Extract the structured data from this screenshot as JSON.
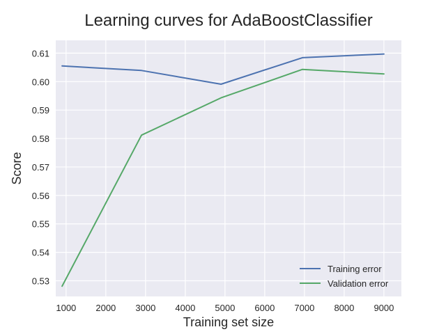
{
  "chart_data": {
    "type": "line",
    "title": "Learning curves for AdaBoostClassifier",
    "xlabel": "Training set size",
    "ylabel": "Score",
    "xlim": [
      740,
      9440
    ],
    "ylim": [
      0.5245,
      0.6145
    ],
    "xticks": [
      1000,
      2000,
      3000,
      4000,
      5000,
      6000,
      7000,
      8000,
      9000
    ],
    "yticks": [
      0.53,
      0.54,
      0.55,
      0.56,
      0.57,
      0.58,
      0.59,
      0.6,
      0.61
    ],
    "grid": true,
    "legend_position": "lower-right",
    "series": [
      {
        "name": "Training error",
        "color": "#4c72b0",
        "x": [
          900,
          2900,
          4900,
          6950,
          9000
        ],
        "y": [
          0.6055,
          0.6039,
          0.5991,
          0.6084,
          0.6097
        ]
      },
      {
        "name": "Validation error",
        "color": "#55a868",
        "x": [
          900,
          2900,
          4900,
          6950,
          9000
        ],
        "y": [
          0.5281,
          0.5812,
          0.5943,
          0.6043,
          0.6027
        ]
      }
    ]
  }
}
